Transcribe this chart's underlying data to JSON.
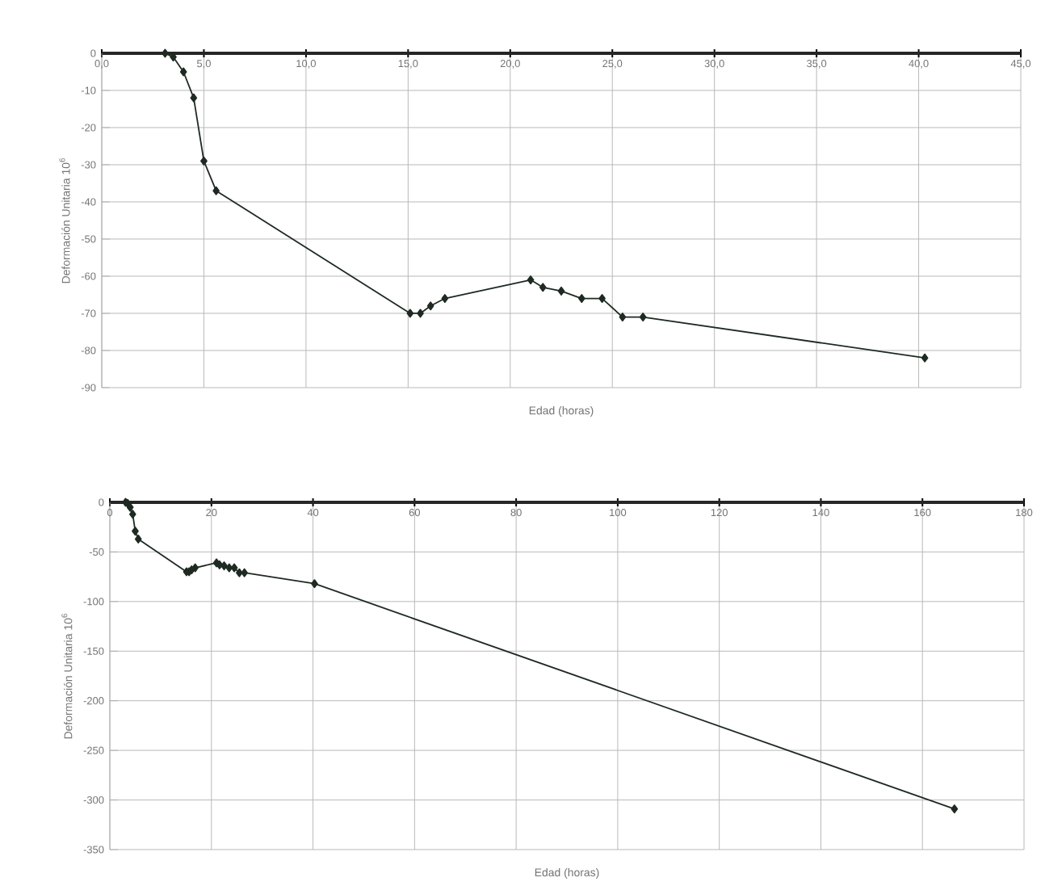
{
  "chart_data": [
    {
      "type": "line",
      "xlabel": "Edad (horas)",
      "ylabel": "Deformación Unitaria 10$^{6}$",
      "x": [
        3.1,
        3.5,
        4.0,
        4.5,
        5.0,
        5.6,
        15.1,
        15.6,
        16.1,
        16.8,
        21.0,
        21.6,
        22.5,
        23.5,
        24.5,
        25.5,
        26.5,
        40.3
      ],
      "series": [
        {
          "color": "#1e2a22",
          "values": [
            0,
            -1,
            -5,
            -12,
            -29,
            -37,
            -70,
            -70,
            -68,
            -66,
            -61,
            -63,
            -64,
            -66,
            -66,
            -71,
            -71,
            -82
          ]
        }
      ],
      "xlim": [
        0,
        45
      ],
      "xticks": [
        {
          "value": 0,
          "label": "0,0"
        },
        {
          "value": 5,
          "label": "5,0"
        },
        {
          "value": 10,
          "label": "10,0"
        },
        {
          "value": 15,
          "label": "15,0"
        },
        {
          "value": 20,
          "label": "20,0"
        },
        {
          "value": 25,
          "label": "25,0"
        },
        {
          "value": 30,
          "label": "30,0"
        },
        {
          "value": 35,
          "label": "35,0"
        },
        {
          "value": 40,
          "label": "40,0"
        },
        {
          "value": 45,
          "label": "45,0"
        }
      ],
      "ylim": [
        -90,
        0
      ],
      "yticks": [
        -90,
        -80,
        -70,
        -60,
        -50,
        -40,
        -30,
        -20,
        -10,
        0
      ],
      "grid": true,
      "marker": "diamond",
      "line_style": "solid"
    },
    {
      "type": "line",
      "xlabel": "Edad (horas)",
      "ylabel": "Deformación Unitaria 10$^{6}$",
      "x": [
        3.1,
        3.5,
        4.0,
        4.5,
        5.0,
        5.6,
        15.1,
        15.6,
        16.1,
        16.8,
        21.0,
        21.6,
        22.5,
        23.5,
        24.5,
        25.5,
        26.5,
        40.3,
        166.3
      ],
      "series": [
        {
          "color": "#1e2a22",
          "values": [
            0,
            -1,
            -5,
            -12,
            -29,
            -37,
            -70,
            -70,
            -68,
            -66,
            -61,
            -63,
            -64,
            -66,
            -66,
            -71,
            -71,
            -82,
            -309
          ]
        }
      ],
      "xlim": [
        0,
        180
      ],
      "xticks": [
        0,
        20,
        40,
        60,
        80,
        100,
        120,
        140,
        160,
        180
      ],
      "ylim": [
        -350,
        0
      ],
      "yticks": [
        -350,
        -300,
        -250,
        -200,
        -150,
        -100,
        -50,
        0
      ],
      "grid": true,
      "marker": "diamond",
      "line_style": "solid"
    }
  ]
}
